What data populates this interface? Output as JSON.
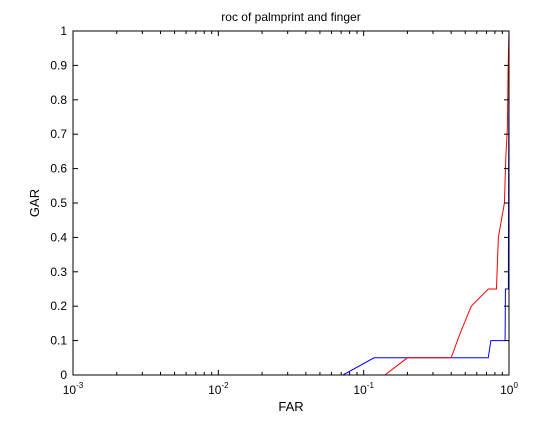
{
  "chart_data": {
    "type": "line",
    "title": "roc of palmprint and finger",
    "xlabel": "FAR",
    "ylabel": "GAR",
    "xscale": "log",
    "xlim": [
      0.001,
      1
    ],
    "ylim": [
      0,
      1
    ],
    "grid": false,
    "legend": "none",
    "x_ticks": [
      {
        "value": 0.001,
        "base": "10",
        "exp": "-3"
      },
      {
        "value": 0.01,
        "base": "10",
        "exp": "-2"
      },
      {
        "value": 0.1,
        "base": "10",
        "exp": "-1"
      },
      {
        "value": 1,
        "base": "10",
        "exp": "0"
      }
    ],
    "y_ticks": [
      "0",
      "0.1",
      "0.2",
      "0.3",
      "0.4",
      "0.5",
      "0.6",
      "0.7",
      "0.8",
      "0.9",
      "1"
    ],
    "series": [
      {
        "color": "#0000ff",
        "points": [
          [
            0.001,
            0
          ],
          [
            0.072,
            0
          ],
          [
            0.118,
            0.05
          ],
          [
            0.72,
            0.05
          ],
          [
            0.75,
            0.1
          ],
          [
            0.94,
            0.1
          ],
          [
            0.945,
            0.25
          ],
          [
            0.99,
            0.25
          ],
          [
            1.0,
            1.0
          ]
        ]
      },
      {
        "color": "#ff0000",
        "points": [
          [
            0.001,
            0
          ],
          [
            0.14,
            0
          ],
          [
            0.2,
            0.05
          ],
          [
            0.4,
            0.05
          ],
          [
            0.46,
            0.12
          ],
          [
            0.55,
            0.2
          ],
          [
            0.72,
            0.25
          ],
          [
            0.82,
            0.25
          ],
          [
            0.845,
            0.4
          ],
          [
            0.93,
            0.5
          ],
          [
            0.95,
            0.63
          ],
          [
            0.975,
            0.72
          ],
          [
            0.985,
            0.88
          ],
          [
            1.0,
            1.0
          ]
        ]
      }
    ]
  }
}
